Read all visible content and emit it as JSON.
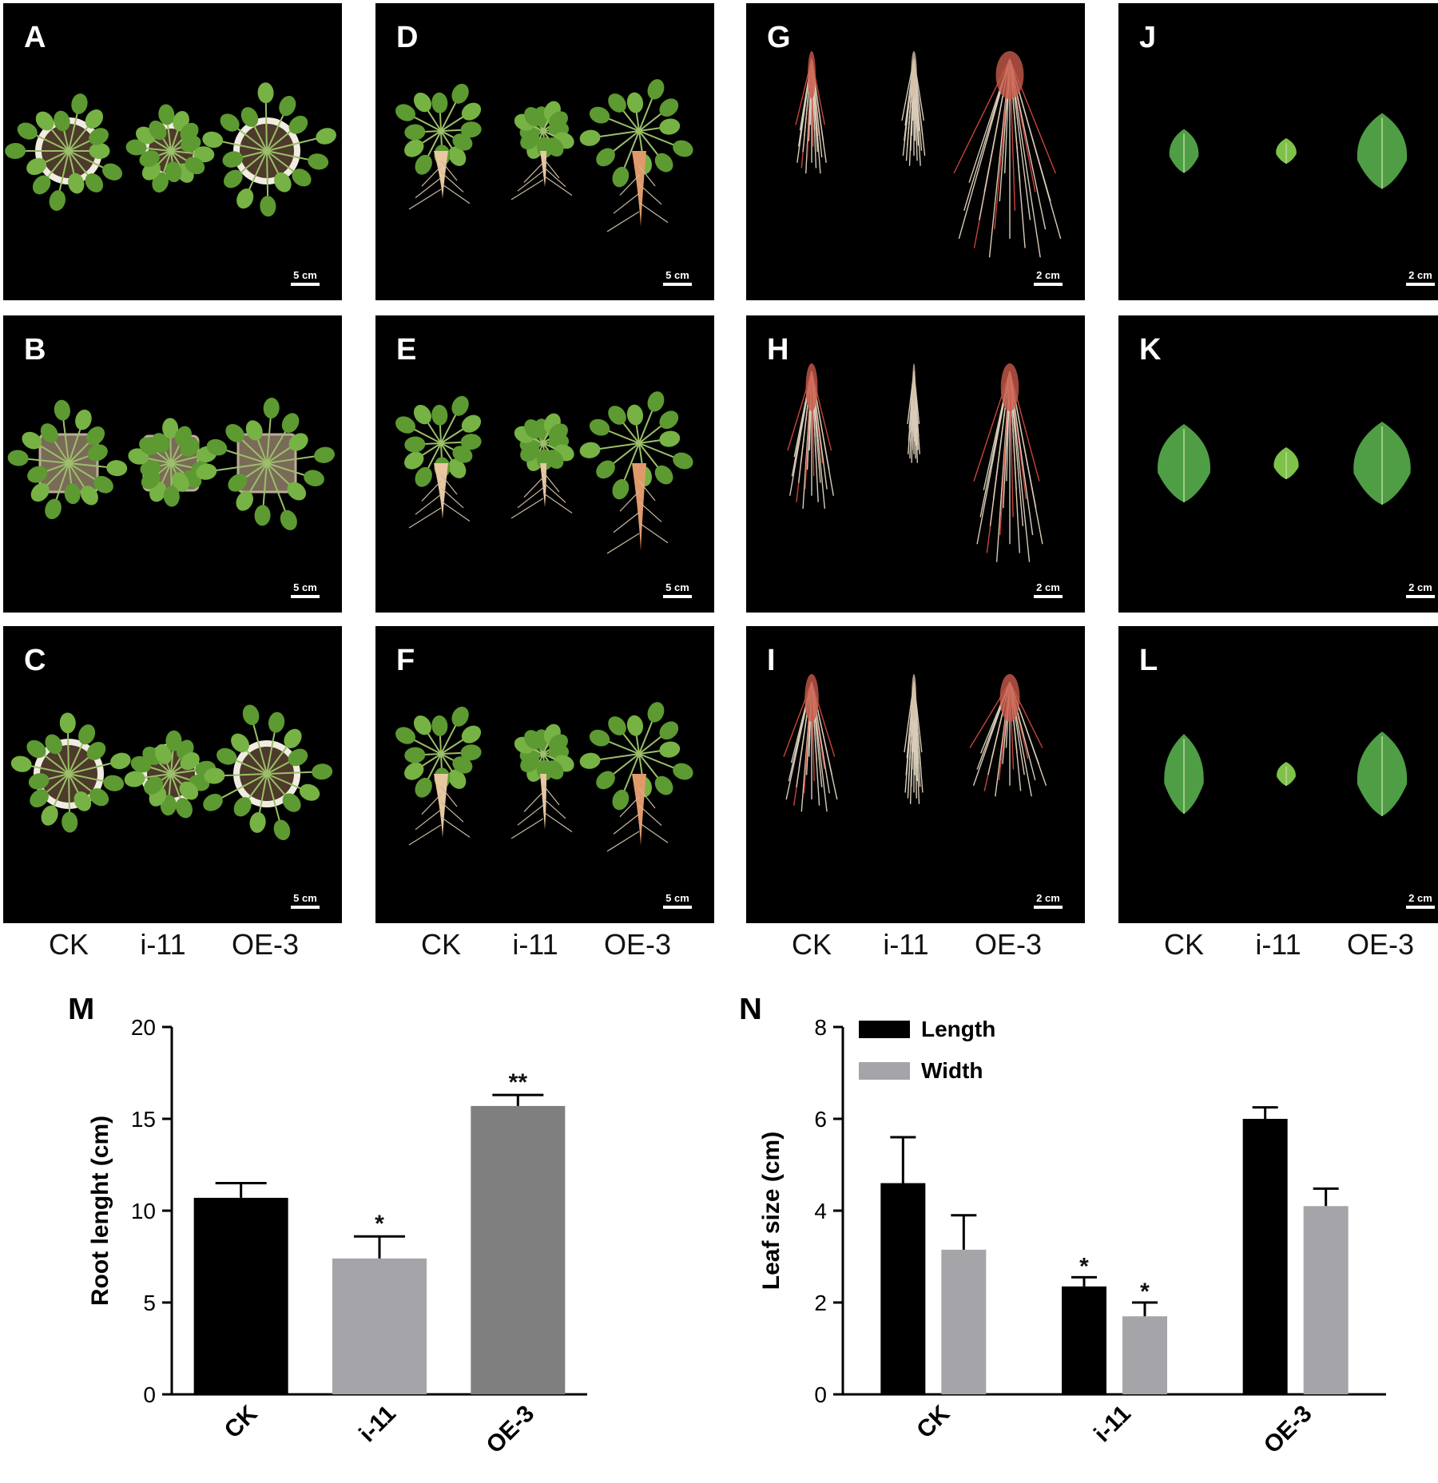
{
  "panels": [
    {
      "label": "A",
      "scale": "5 cm"
    },
    {
      "label": "B",
      "scale": "5 cm"
    },
    {
      "label": "C",
      "scale": "5 cm"
    },
    {
      "label": "D",
      "scale": "5 cm"
    },
    {
      "label": "E",
      "scale": "5 cm"
    },
    {
      "label": "F",
      "scale": "5 cm"
    },
    {
      "label": "G",
      "scale": "2 cm"
    },
    {
      "label": "H",
      "scale": "2 cm"
    },
    {
      "label": "I",
      "scale": "2 cm"
    },
    {
      "label": "J",
      "scale": "2 cm"
    },
    {
      "label": "K",
      "scale": "2 cm"
    },
    {
      "label": "L",
      "scale": "2 cm"
    }
  ],
  "group_labels": [
    "CK",
    "i-11",
    "OE-3"
  ],
  "chart_data": [
    {
      "panel_label": "M",
      "type": "bar",
      "categories": [
        "CK",
        "i-11",
        "OE-3"
      ],
      "values": [
        10.7,
        7.4,
        15.7
      ],
      "errors": [
        0.8,
        1.2,
        0.6
      ],
      "significance": [
        "",
        "*",
        "**"
      ],
      "colors": [
        "#000000",
        "#a5a5a9",
        "#7f7f7f"
      ],
      "ylabel": "Root lenght (cm)",
      "ylim": [
        0,
        20
      ],
      "yticks": [
        0,
        5,
        10,
        15,
        20
      ]
    },
    {
      "panel_label": "N",
      "type": "bar",
      "categories": [
        "CK",
        "i-11",
        "OE-3"
      ],
      "series": [
        {
          "name": "Length",
          "values": [
            4.6,
            2.35,
            6.0
          ],
          "errors": [
            1.0,
            0.2,
            0.25
          ],
          "significance": [
            "",
            "*",
            ""
          ],
          "color": "#000000"
        },
        {
          "name": "Width",
          "values": [
            3.15,
            1.7,
            4.1
          ],
          "errors": [
            0.75,
            0.3,
            0.38
          ],
          "significance": [
            "",
            "*",
            ""
          ],
          "color": "#a5a5a9"
        }
      ],
      "ylabel": "Leaf size (cm)",
      "ylim": [
        0,
        8
      ],
      "yticks": [
        0,
        2,
        4,
        6,
        8
      ],
      "legend_position": "top-left"
    }
  ]
}
